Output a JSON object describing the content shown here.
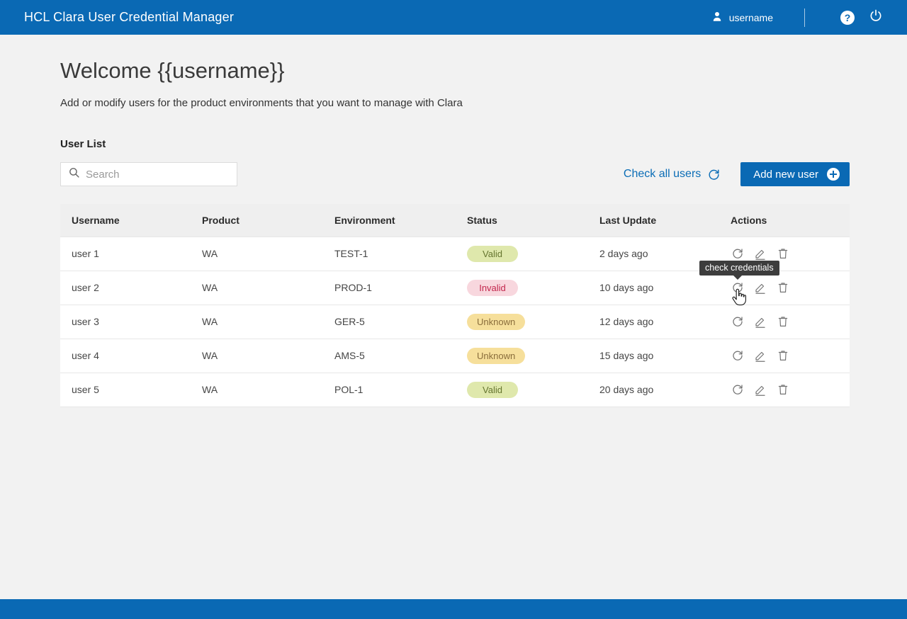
{
  "header": {
    "title": "HCL Clara User Credential Manager",
    "username": "username"
  },
  "welcome": {
    "heading": "Welcome {{username}}",
    "subtitle": "Add or modify users for the product environments that you want to manage with Clara"
  },
  "user_list": {
    "section_title": "User List",
    "search_placeholder": "Search",
    "search_value": "",
    "check_all_label": "Check all users",
    "add_new_label": "Add new user"
  },
  "table": {
    "columns": [
      "Username",
      "Product",
      "Environment",
      "Status",
      "Last Update",
      "Actions"
    ],
    "rows": [
      {
        "username": "user 1",
        "product": "WA",
        "environment": "TEST-1",
        "status": "Valid",
        "last_update": "2 days ago"
      },
      {
        "username": "user 2",
        "product": "WA",
        "environment": "PROD-1",
        "status": "Invalid",
        "last_update": "10 days ago"
      },
      {
        "username": "user 3",
        "product": "WA",
        "environment": "GER-5",
        "status": "Unknown",
        "last_update": "12 days ago"
      },
      {
        "username": "user 4",
        "product": "WA",
        "environment": "AMS-5",
        "status": "Unknown",
        "last_update": "15 days ago"
      },
      {
        "username": "user 5",
        "product": "WA",
        "environment": "POL-1",
        "status": "Valid",
        "last_update": "20 days ago"
      }
    ]
  },
  "tooltip": {
    "text": "check credentials"
  },
  "colors": {
    "brand_blue": "#0a69b4",
    "link_blue": "#0b6db6",
    "page_bg": "#f2f2f2",
    "status_valid_bg": "#dfe8ac",
    "status_valid_text": "#65752f",
    "status_invalid_bg": "#f8d7de",
    "status_invalid_text": "#c2254c",
    "status_unknown_bg": "#f6df9b",
    "status_unknown_text": "#8a6d3b",
    "tooltip_bg": "#3d3d3d"
  }
}
